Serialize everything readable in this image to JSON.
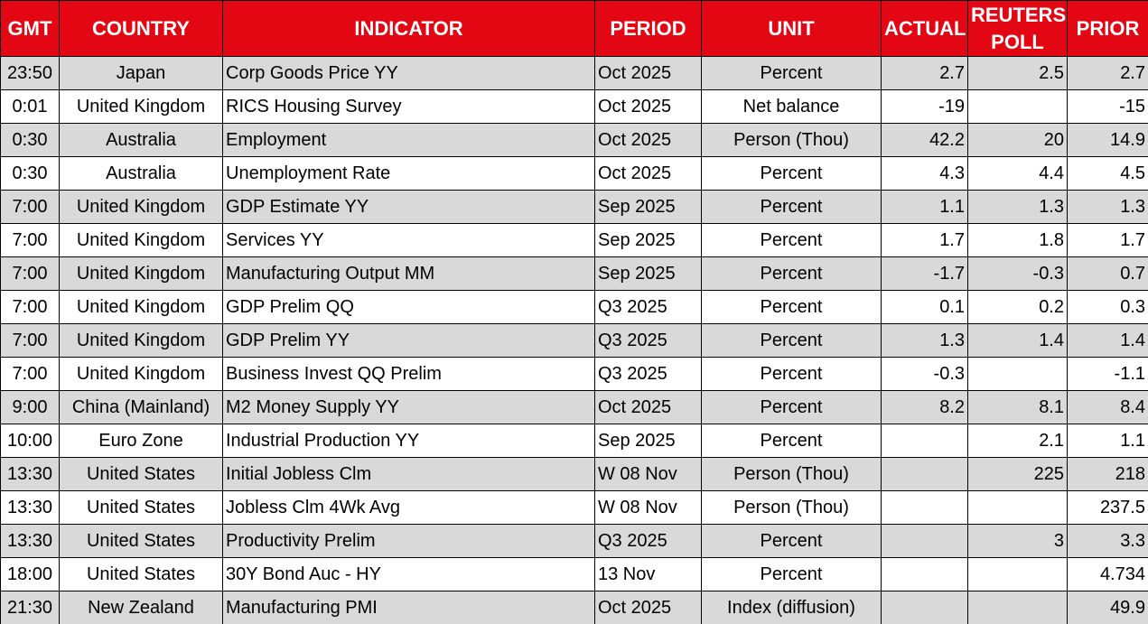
{
  "table": {
    "header": [
      "GMT",
      "COUNTRY",
      "INDICATOR",
      "PERIOD",
      "UNIT",
      "ACTUAL",
      "REUTERS POLL",
      "PRIOR"
    ],
    "rows": [
      [
        "23:50",
        "Japan",
        "Corp Goods Price YY",
        "Oct 2025",
        "Percent",
        "2.7",
        "2.5",
        "2.7"
      ],
      [
        "0:01",
        "United Kingdom",
        "RICS Housing Survey",
        "Oct 2025",
        "Net balance",
        "-19",
        null,
        "-15"
      ],
      [
        "0:30",
        "Australia",
        "Employment",
        "Oct 2025",
        "Person (Thou)",
        "42.2",
        "20",
        "14.9"
      ],
      [
        "0:30",
        "Australia",
        "Unemployment Rate",
        "Oct 2025",
        "Percent",
        "4.3",
        "4.4",
        "4.5"
      ],
      [
        "7:00",
        "United Kingdom",
        "GDP Estimate YY",
        "Sep 2025",
        "Percent",
        "1.1",
        "1.3",
        "1.3"
      ],
      [
        "7:00",
        "United Kingdom",
        "Services YY",
        "Sep 2025",
        "Percent",
        "1.7",
        "1.8",
        "1.7"
      ],
      [
        "7:00",
        "United Kingdom",
        "Manufacturing Output MM",
        "Sep 2025",
        "Percent",
        "-1.7",
        "-0.3",
        "0.7"
      ],
      [
        "7:00",
        "United Kingdom",
        "GDP Prelim QQ",
        "Q3 2025",
        "Percent",
        "0.1",
        "0.2",
        "0.3"
      ],
      [
        "7:00",
        "United Kingdom",
        "GDP Prelim YY",
        "Q3 2025",
        "Percent",
        "1.3",
        "1.4",
        "1.4"
      ],
      [
        "7:00",
        "United Kingdom",
        "Business Invest QQ Prelim",
        "Q3 2025",
        "Percent",
        "-0.3",
        null,
        "-1.1"
      ],
      [
        "9:00",
        "China (Mainland)",
        "M2 Money Supply YY",
        "Oct 2025",
        "Percent",
        "8.2",
        "8.1",
        "8.4"
      ],
      [
        "10:00",
        "Euro Zone",
        "Industrial Production YY",
        "Sep 2025",
        "Percent",
        null,
        "2.1",
        "1.1"
      ],
      [
        "13:30",
        "United States",
        "Initial Jobless Clm",
        "W 08 Nov",
        "Person (Thou)",
        null,
        "225",
        "218"
      ],
      [
        "13:30",
        "United States",
        "Jobless Clm 4Wk Avg",
        "W 08 Nov",
        "Person (Thou)",
        null,
        null,
        "237.5"
      ],
      [
        "13:30",
        "United States",
        "Productivity Prelim",
        "Q3 2025",
        "Percent",
        null,
        "3",
        "3.3"
      ],
      [
        "18:00",
        "United States",
        "30Y Bond Auc - HY",
        "13 Nov",
        "Percent",
        null,
        null,
        "4.734"
      ],
      [
        "21:30",
        "New Zealand",
        "Manufacturing PMI",
        "Oct 2025",
        "Index (diffusion)",
        null,
        null,
        "49.9"
      ]
    ]
  }
}
